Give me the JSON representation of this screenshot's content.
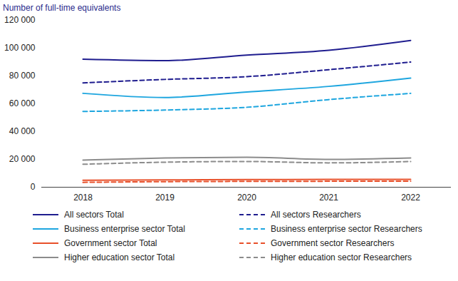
{
  "chart_data": {
    "type": "line",
    "title": "Number of full-time equivalents",
    "categories": [
      "2018",
      "2019",
      "2020",
      "2021",
      "2022"
    ],
    "ylim": [
      0,
      120000
    ],
    "yticks": [
      0,
      {
        "value": 20000,
        "label": "20 000"
      },
      {
        "value": 40000,
        "label": "40 000"
      },
      {
        "value": 60000,
        "label": "60 000"
      },
      {
        "value": 80000,
        "label": "80 000"
      },
      {
        "value": 100000,
        "label": "100 000"
      },
      {
        "value": 120000,
        "label": "120 000"
      }
    ],
    "grid": false,
    "legend": "bottom",
    "series": [
      {
        "name": "All sectors Total",
        "color": "#1f1d8f",
        "line_style": "solid",
        "values": [
          92000,
          91000,
          95000,
          98500,
          105500
        ]
      },
      {
        "name": "All sectors Researchers",
        "color": "#1f1d8f",
        "line_style": "dashed",
        "values": [
          75000,
          77500,
          79500,
          84500,
          90000
        ]
      },
      {
        "name": "Business enterprise sector Total",
        "color": "#1ea6df",
        "line_style": "solid",
        "values": [
          67500,
          64500,
          68500,
          72500,
          78500
        ]
      },
      {
        "name": "Business enterprise sector Researchers",
        "color": "#1ea6df",
        "line_style": "dashed",
        "values": [
          54500,
          55500,
          57500,
          63000,
          67500
        ]
      },
      {
        "name": "Government sector Total",
        "color": "#e8502a",
        "line_style": "solid",
        "values": [
          5000,
          5200,
          5500,
          5600,
          5700
        ]
      },
      {
        "name": "Government sector Researchers",
        "color": "#e8502a",
        "line_style": "dashed",
        "values": [
          3500,
          4000,
          4200,
          4300,
          4400
        ]
      },
      {
        "name": "Higher education sector Total",
        "color": "#8c8c8c",
        "line_style": "solid",
        "values": [
          19500,
          21000,
          21500,
          20000,
          21000
        ]
      },
      {
        "name": "Higher education sector Researchers",
        "color": "#8c8c8c",
        "line_style": "dashed",
        "values": [
          16500,
          18000,
          18500,
          17500,
          18500
        ]
      }
    ]
  }
}
